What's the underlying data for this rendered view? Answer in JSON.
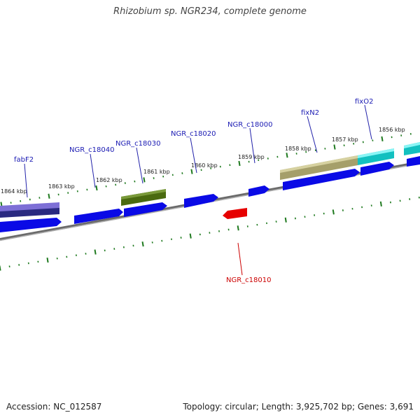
{
  "header": {
    "title": "Rhizobium sp. NGR234, complete genome"
  },
  "footer": {
    "accession": "Accession: NC_012587",
    "summary": "Topology: circular; Length: 3,925,702 bp; Genes: 3,691"
  },
  "map": {
    "colors": {
      "backbone": "#8a8a8a",
      "tick": "#1f7a1f",
      "gene_forward": "#0a0ae6",
      "gene_reverse": "#e60000",
      "label_default": "#1a1ab3",
      "label_reverse": "#cc0000"
    },
    "scale_labels": [
      "1864 kbp",
      "1863 kbp",
      "1862 kbp",
      "1861 kbp",
      "1860 kbp",
      "1859 kbp",
      "1858 kbp",
      "1857 kbp",
      "1856 kbp"
    ],
    "gene_labels": [
      {
        "id": "fabF2",
        "text": "fabF2",
        "strand": "forward"
      },
      {
        "id": "ngr-c18040",
        "text": "NGR_c18040",
        "strand": "forward"
      },
      {
        "id": "ngr-c18030",
        "text": "NGR_c18030",
        "strand": "forward"
      },
      {
        "id": "ngr-c18020",
        "text": "NGR_c18020",
        "strand": "forward"
      },
      {
        "id": "ngr-c18000",
        "text": "NGR_c18000",
        "strand": "forward"
      },
      {
        "id": "fixn2",
        "text": "fixN2",
        "strand": "forward"
      },
      {
        "id": "fixo2",
        "text": "fixO2",
        "strand": "forward"
      },
      {
        "id": "ngr-c18010",
        "text": "NGR_c18010",
        "strand": "reverse"
      }
    ],
    "domain_colors": {
      "fabF2": "#6a5acd",
      "NGR_c18030": "#5a7a1a",
      "fixN2": "#b5b07a",
      "fixO2": "#22e0e0"
    }
  }
}
